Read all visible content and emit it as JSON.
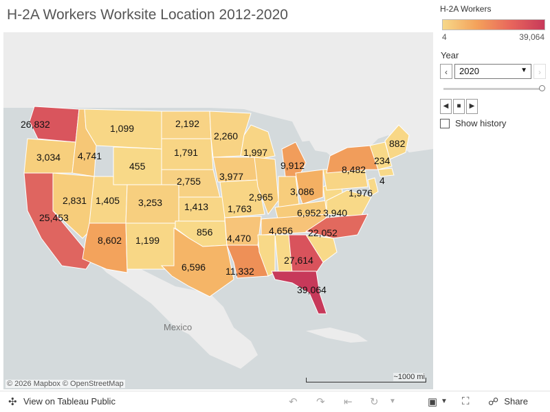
{
  "title": "H-2A Workers Worksite Location 2012-2020",
  "legend": {
    "title": "H-2A Workers",
    "min": "4",
    "max": "39,064"
  },
  "filter": {
    "label": "Year",
    "selected": "2020",
    "show_history": "Show history"
  },
  "map": {
    "attribution": "© 2026 Mapbox © OpenStreetMap",
    "scale": "~1000 mi",
    "country_labels": [
      "Mexico"
    ],
    "states": [
      {
        "state": "WA",
        "workers": "26,832"
      },
      {
        "state": "OR",
        "workers": "3,034"
      },
      {
        "state": "CA",
        "workers": "25,453"
      },
      {
        "state": "ID",
        "workers": "4,741"
      },
      {
        "state": "NV",
        "workers": "2,831"
      },
      {
        "state": "MT",
        "workers": "1,099"
      },
      {
        "state": "WY",
        "workers": "455"
      },
      {
        "state": "UT",
        "workers": "1,405"
      },
      {
        "state": "CO",
        "workers": "3,253"
      },
      {
        "state": "AZ",
        "workers": "8,602"
      },
      {
        "state": "NM",
        "workers": "1,199"
      },
      {
        "state": "ND",
        "workers": "2,192"
      },
      {
        "state": "SD",
        "workers": "1,791"
      },
      {
        "state": "NE",
        "workers": "2,755"
      },
      {
        "state": "KS",
        "workers": "1,413"
      },
      {
        "state": "OK",
        "workers": "856"
      },
      {
        "state": "TX",
        "workers": "6,596"
      },
      {
        "state": "MN",
        "workers": "2,260"
      },
      {
        "state": "IA",
        "workers": "3,977"
      },
      {
        "state": "MO",
        "workers": "1,763"
      },
      {
        "state": "AR",
        "workers": "4,470"
      },
      {
        "state": "LA",
        "workers": "11,332"
      },
      {
        "state": "WI",
        "workers": "1,997"
      },
      {
        "state": "IL",
        "workers": "2,965"
      },
      {
        "state": "MI",
        "workers": "9,912"
      },
      {
        "state": "IN",
        "workers": "3,086"
      },
      {
        "state": "OH",
        "workers": "6,952"
      },
      {
        "state": "KY",
        "workers": "3,940"
      },
      {
        "state": "TN",
        "workers": "4,656"
      },
      {
        "state": "NC",
        "workers": "22,052"
      },
      {
        "state": "GA",
        "workers": "27,614"
      },
      {
        "state": "FL",
        "workers": "39,064"
      },
      {
        "state": "NY",
        "workers": "8,482"
      },
      {
        "state": "PA",
        "workers": "1,976"
      },
      {
        "state": "VT/NH",
        "workers": "234"
      },
      {
        "state": "ME",
        "workers": "882"
      },
      {
        "state": "NJ",
        "workers": "4"
      }
    ]
  },
  "toolbar": {
    "tableau_public": "View on Tableau Public",
    "share": "Share"
  },
  "colors": {
    "map_bg": "#d4dadc",
    "land": "#ededed",
    "low": "#f6d889",
    "mid": "#f4a25b",
    "high": "#c7395a"
  }
}
